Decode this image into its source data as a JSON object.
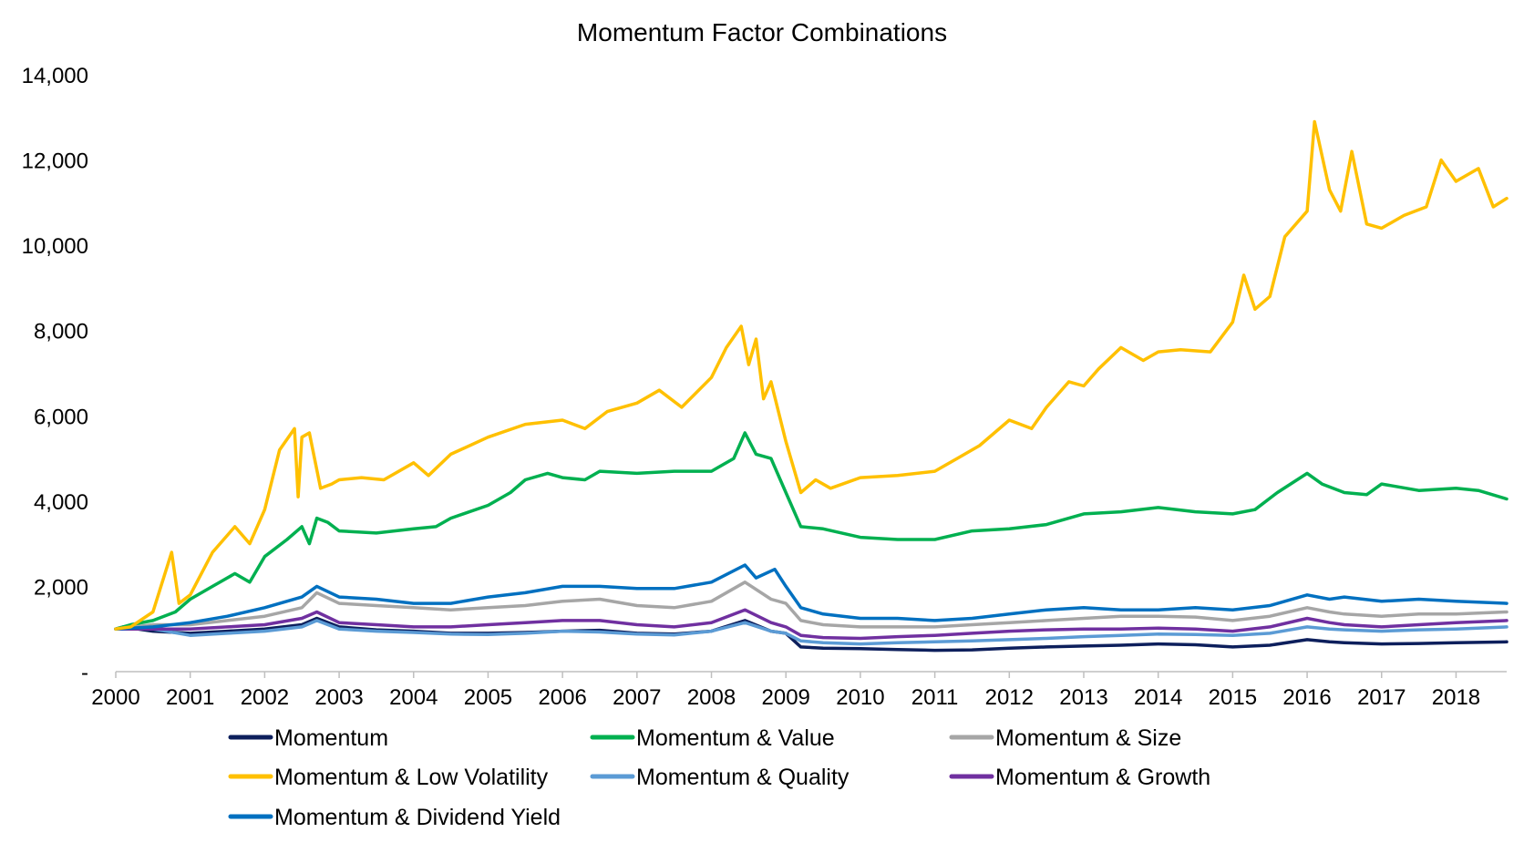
{
  "chart_data": {
    "type": "line",
    "title": "Momentum Factor Combinations",
    "xlabel": "",
    "ylabel": "",
    "x_range": [
      2000.0,
      2018.68
    ],
    "ylim": [
      0,
      14000
    ],
    "y_ticks": [
      0,
      2000,
      4000,
      6000,
      8000,
      10000,
      12000,
      14000
    ],
    "y_tick_labels": [
      "-",
      "2,000",
      "4,000",
      "6,000",
      "8,000",
      "10,000",
      "12,000",
      "14,000"
    ],
    "x_ticks": [
      2000,
      2001,
      2002,
      2003,
      2004,
      2005,
      2006,
      2007,
      2008,
      2009,
      2010,
      2011,
      2012,
      2013,
      2014,
      2015,
      2016,
      2017,
      2018
    ],
    "x_tick_labels": [
      "2000",
      "2001",
      "2002",
      "2003",
      "2004",
      "2005",
      "2006",
      "2007",
      "2008",
      "2009",
      "2010",
      "2011",
      "2012",
      "2013",
      "2014",
      "2015",
      "2016",
      "2017",
      "2018"
    ],
    "grid": false,
    "legend_position": "bottom",
    "series": [
      {
        "name": "Momentum",
        "color": "#0d1f5c",
        "x": [
          2000.0,
          2000.1,
          2000.5,
          2001.0,
          2001.5,
          2002.0,
          2002.5,
          2002.7,
          2003.0,
          2003.5,
          2004.0,
          2004.5,
          2005.0,
          2005.5,
          2006.0,
          2006.5,
          2007.0,
          2007.5,
          2008.0,
          2008.45,
          2008.8,
          2009.0,
          2009.2,
          2009.5,
          2010.0,
          2010.5,
          2011.0,
          2011.5,
          2012.0,
          2012.5,
          2013.0,
          2013.5,
          2014.0,
          2014.5,
          2015.0,
          2015.5,
          2016.0,
          2016.3,
          2016.5,
          2017.0,
          2017.5,
          2018.0,
          2018.68
        ],
        "y": [
          1000,
          1050,
          950,
          900,
          950,
          1000,
          1100,
          1250,
          1050,
          980,
          950,
          900,
          900,
          920,
          950,
          970,
          900,
          880,
          950,
          1200,
          950,
          900,
          580,
          550,
          540,
          520,
          500,
          510,
          550,
          580,
          600,
          620,
          650,
          630,
          580,
          620,
          750,
          700,
          680,
          650,
          660,
          680,
          700
        ]
      },
      {
        "name": "Momentum & Value",
        "color": "#00b050",
        "x": [
          2000.0,
          2000.2,
          2000.5,
          2000.8,
          2001.0,
          2001.3,
          2001.6,
          2001.8,
          2002.0,
          2002.3,
          2002.5,
          2002.6,
          2002.7,
          2002.85,
          2003.0,
          2003.5,
          2004.0,
          2004.3,
          2004.5,
          2005.0,
          2005.3,
          2005.5,
          2005.8,
          2006.0,
          2006.3,
          2006.5,
          2007.0,
          2007.5,
          2008.0,
          2008.3,
          2008.45,
          2008.6,
          2008.8,
          2009.0,
          2009.2,
          2009.5,
          2010.0,
          2010.5,
          2011.0,
          2011.5,
          2012.0,
          2012.5,
          2013.0,
          2013.5,
          2014.0,
          2014.5,
          2015.0,
          2015.3,
          2015.6,
          2016.0,
          2016.2,
          2016.5,
          2016.8,
          2017.0,
          2017.5,
          2018.0,
          2018.3,
          2018.68
        ],
        "y": [
          1000,
          1100,
          1200,
          1400,
          1700,
          2000,
          2300,
          2100,
          2700,
          3100,
          3400,
          3000,
          3600,
          3500,
          3300,
          3250,
          3350,
          3400,
          3600,
          3900,
          4200,
          4500,
          4650,
          4550,
          4500,
          4700,
          4650,
          4700,
          4700,
          5000,
          5600,
          5100,
          5000,
          4200,
          3400,
          3350,
          3150,
          3100,
          3100,
          3300,
          3350,
          3450,
          3700,
          3750,
          3850,
          3750,
          3700,
          3800,
          4200,
          4650,
          4400,
          4200,
          4150,
          4400,
          4250,
          4300,
          4250,
          4050
        ]
      },
      {
        "name": "Momentum & Size",
        "color": "#a6a6a6",
        "x": [
          2000.0,
          2000.5,
          2001.0,
          2001.5,
          2002.0,
          2002.5,
          2002.7,
          2003.0,
          2003.5,
          2004.0,
          2004.5,
          2005.0,
          2005.5,
          2006.0,
          2006.5,
          2007.0,
          2007.5,
          2008.0,
          2008.45,
          2008.8,
          2009.0,
          2009.2,
          2009.5,
          2010.0,
          2010.5,
          2011.0,
          2011.5,
          2012.0,
          2012.5,
          2013.0,
          2013.5,
          2014.0,
          2014.5,
          2015.0,
          2015.5,
          2016.0,
          2016.3,
          2016.5,
          2017.0,
          2017.5,
          2018.0,
          2018.68
        ],
        "y": [
          1000,
          1100,
          1100,
          1200,
          1300,
          1500,
          1850,
          1600,
          1550,
          1500,
          1450,
          1500,
          1550,
          1650,
          1700,
          1550,
          1500,
          1650,
          2100,
          1700,
          1600,
          1200,
          1100,
          1050,
          1050,
          1050,
          1100,
          1150,
          1200,
          1250,
          1300,
          1300,
          1280,
          1200,
          1300,
          1500,
          1400,
          1350,
          1300,
          1350,
          1350,
          1400
        ]
      },
      {
        "name": "Momentum & Low Volatility",
        "color": "#ffc000",
        "x": [
          2000.0,
          2000.2,
          2000.5,
          2000.75,
          2000.85,
          2001.0,
          2001.3,
          2001.6,
          2001.8,
          2002.0,
          2002.2,
          2002.4,
          2002.45,
          2002.5,
          2002.6,
          2002.75,
          2002.9,
          2003.0,
          2003.3,
          2003.6,
          2004.0,
          2004.2,
          2004.5,
          2005.0,
          2005.5,
          2006.0,
          2006.3,
          2006.6,
          2007.0,
          2007.3,
          2007.6,
          2008.0,
          2008.2,
          2008.4,
          2008.5,
          2008.6,
          2008.7,
          2008.8,
          2009.0,
          2009.2,
          2009.4,
          2009.6,
          2010.0,
          2010.5,
          2011.0,
          2011.3,
          2011.6,
          2012.0,
          2012.3,
          2012.5,
          2012.8,
          2013.0,
          2013.2,
          2013.5,
          2013.8,
          2014.0,
          2014.3,
          2014.7,
          2015.0,
          2015.15,
          2015.3,
          2015.5,
          2015.7,
          2016.0,
          2016.1,
          2016.3,
          2016.45,
          2016.6,
          2016.8,
          2017.0,
          2017.3,
          2017.6,
          2017.8,
          2018.0,
          2018.3,
          2018.5,
          2018.68
        ],
        "y": [
          1000,
          1050,
          1400,
          2800,
          1600,
          1800,
          2800,
          3400,
          3000,
          3800,
          5200,
          5700,
          4100,
          5500,
          5600,
          4300,
          4400,
          4500,
          4550,
          4500,
          4900,
          4600,
          5100,
          5500,
          5800,
          5900,
          5700,
          6100,
          6300,
          6600,
          6200,
          6900,
          7600,
          8100,
          7200,
          7800,
          6400,
          6800,
          5400,
          4200,
          4500,
          4300,
          4550,
          4600,
          4700,
          5000,
          5300,
          5900,
          5700,
          6200,
          6800,
          6700,
          7100,
          7600,
          7300,
          7500,
          7550,
          7500,
          8200,
          9300,
          8500,
          8800,
          10200,
          10800,
          12900,
          11300,
          10800,
          12200,
          10500,
          10400,
          10700,
          10900,
          12000,
          11500,
          11800,
          10900,
          11100
        ]
      },
      {
        "name": "Momentum & Quality",
        "color": "#5b9bd5",
        "x": [
          2000.0,
          2000.5,
          2001.0,
          2001.5,
          2002.0,
          2002.5,
          2002.7,
          2003.0,
          2003.5,
          2004.0,
          2004.5,
          2005.0,
          2005.5,
          2006.0,
          2006.5,
          2007.0,
          2007.5,
          2008.0,
          2008.45,
          2008.8,
          2009.0,
          2009.2,
          2009.5,
          2010.0,
          2010.5,
          2011.0,
          2011.5,
          2012.0,
          2012.5,
          2013.0,
          2013.5,
          2014.0,
          2014.5,
          2015.0,
          2015.5,
          2016.0,
          2016.3,
          2016.5,
          2017.0,
          2017.5,
          2018.0,
          2018.68
        ],
        "y": [
          1000,
          1000,
          850,
          900,
          950,
          1050,
          1200,
          1000,
          950,
          920,
          880,
          870,
          900,
          950,
          930,
          880,
          860,
          950,
          1150,
          950,
          900,
          720,
          680,
          650,
          680,
          700,
          720,
          750,
          780,
          820,
          850,
          880,
          870,
          850,
          900,
          1050,
          1000,
          980,
          950,
          980,
          1000,
          1050
        ]
      },
      {
        "name": "Momentum & Growth",
        "color": "#7030a0",
        "x": [
          2000.0,
          2000.5,
          2001.0,
          2001.5,
          2002.0,
          2002.5,
          2002.7,
          2003.0,
          2003.5,
          2004.0,
          2004.5,
          2005.0,
          2005.5,
          2006.0,
          2006.5,
          2007.0,
          2007.5,
          2008.0,
          2008.45,
          2008.8,
          2009.0,
          2009.2,
          2009.5,
          2010.0,
          2010.5,
          2011.0,
          2011.5,
          2012.0,
          2012.5,
          2013.0,
          2013.5,
          2014.0,
          2014.5,
          2015.0,
          2015.5,
          2016.0,
          2016.3,
          2016.5,
          2017.0,
          2017.5,
          2018.0,
          2018.68
        ],
        "y": [
          1000,
          1000,
          1000,
          1050,
          1100,
          1250,
          1400,
          1150,
          1100,
          1050,
          1050,
          1100,
          1150,
          1200,
          1200,
          1100,
          1050,
          1150,
          1450,
          1150,
          1050,
          850,
          800,
          780,
          820,
          850,
          900,
          950,
          980,
          1000,
          1000,
          1020,
          1000,
          950,
          1050,
          1250,
          1150,
          1100,
          1050,
          1100,
          1150,
          1200
        ]
      },
      {
        "name": "Momentum & Dividend Yield",
        "color": "#0070c0",
        "x": [
          2000.0,
          2000.5,
          2001.0,
          2001.5,
          2002.0,
          2002.5,
          2002.7,
          2003.0,
          2003.5,
          2004.0,
          2004.5,
          2005.0,
          2005.5,
          2006.0,
          2006.5,
          2007.0,
          2007.5,
          2008.0,
          2008.45,
          2008.6,
          2008.85,
          2009.0,
          2009.2,
          2009.5,
          2010.0,
          2010.5,
          2011.0,
          2011.5,
          2012.0,
          2012.5,
          2013.0,
          2013.5,
          2014.0,
          2014.5,
          2015.0,
          2015.5,
          2016.0,
          2016.3,
          2016.5,
          2017.0,
          2017.5,
          2018.0,
          2018.68
        ],
        "y": [
          1000,
          1050,
          1150,
          1300,
          1500,
          1750,
          2000,
          1750,
          1700,
          1600,
          1600,
          1750,
          1850,
          2000,
          2000,
          1950,
          1950,
          2100,
          2500,
          2200,
          2400,
          2000,
          1500,
          1350,
          1250,
          1250,
          1200,
          1250,
          1350,
          1450,
          1500,
          1450,
          1450,
          1500,
          1450,
          1550,
          1800,
          1700,
          1750,
          1650,
          1700,
          1650,
          1600
        ]
      }
    ]
  }
}
